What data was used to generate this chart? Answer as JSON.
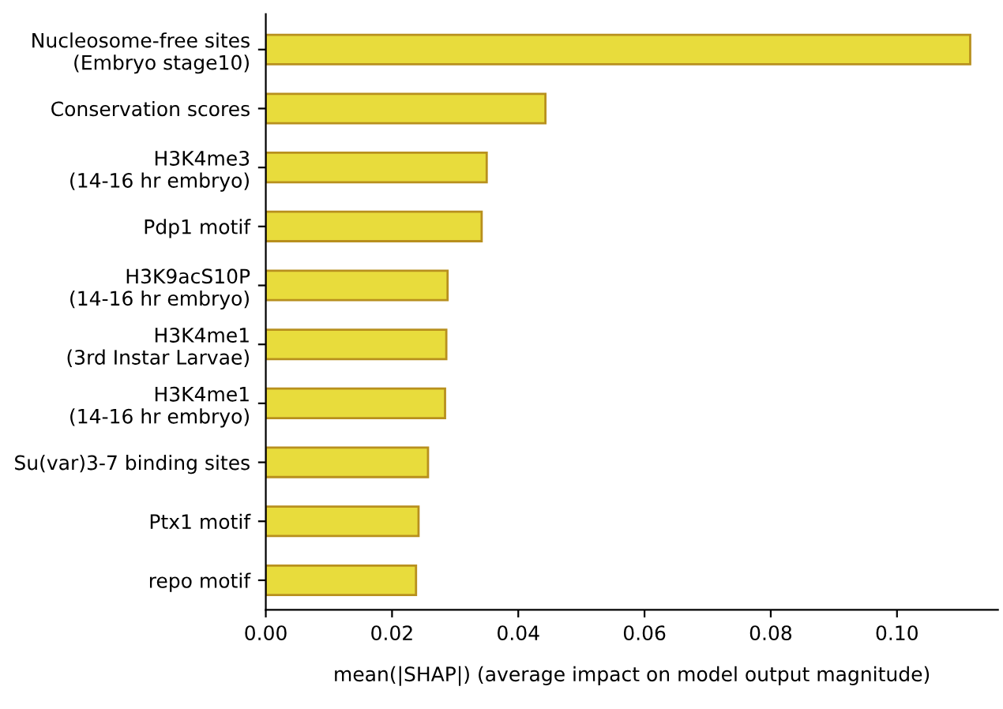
{
  "chart_data": {
    "type": "bar",
    "orientation": "horizontal",
    "xlabel": "mean(|SHAP|) (average impact on model output magnitude)",
    "categories": [
      "Nucleosome-free sites\n(Embryo stage10)",
      "Conservation scores",
      "H3K4me3\n(14-16 hr embryo)",
      "Pdp1 motif",
      "H3K9acS10P\n(14-16 hr embryo)",
      "H3K4me1\n(3rd Instar Larvae)",
      "H3K4me1\n(14-16 hr embryo)",
      "Su(var)3-7 binding sites",
      "Ptx1 motif",
      "repo motif"
    ],
    "values": [
      0.1116,
      0.0443,
      0.035,
      0.0342,
      0.0288,
      0.0286,
      0.0284,
      0.0257,
      0.0242,
      0.0238
    ],
    "color": "#e8dc3c",
    "xlim": [
      0,
      0.116
    ],
    "xticks": [
      {
        "value": 0,
        "label": "0.00"
      },
      {
        "value": 0.02,
        "label": "0.02"
      },
      {
        "value": 0.04,
        "label": "0.04"
      },
      {
        "value": 0.06,
        "label": "0.06"
      },
      {
        "value": 0.08,
        "label": "0.08"
      },
      {
        "value": 0.1,
        "label": "0.10"
      }
    ],
    "grid": false
  }
}
